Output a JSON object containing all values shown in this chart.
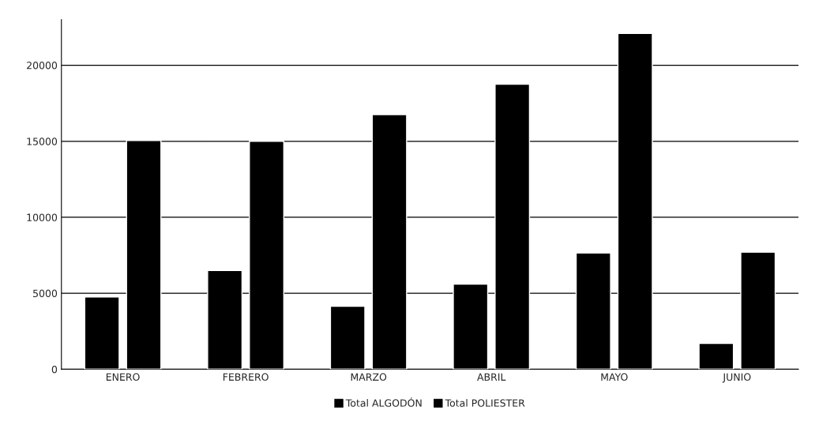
{
  "chart_data": {
    "type": "bar",
    "categories": [
      "ENERO",
      "FEBRERO",
      "MARZO",
      "ABRIL",
      "MAYO",
      "JUNIO"
    ],
    "series": [
      {
        "name": "Total ALGODÓN",
        "color": "#000000",
        "values": [
          4750,
          6500,
          4150,
          5600,
          7650,
          1700
        ]
      },
      {
        "name": "Total POLIESTER",
        "color": "#000000",
        "values": [
          15050,
          15000,
          16750,
          18750,
          22100,
          7700
        ]
      }
    ],
    "ylim": [
      0,
      23000
    ],
    "yticks": [
      0,
      5000,
      10000,
      15000,
      20000
    ],
    "grid": "y",
    "legend": "bottom"
  }
}
